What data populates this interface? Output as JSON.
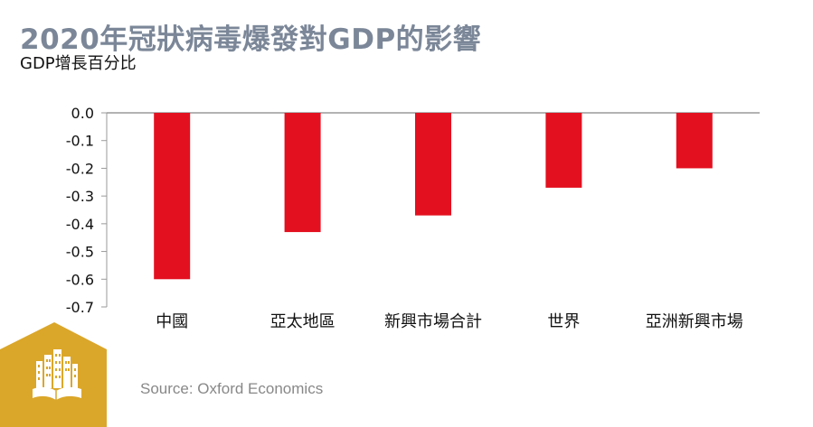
{
  "header": {
    "title": "2020年冠狀病毒爆發對GDP的影響",
    "subtitle": "GDP增長百分比"
  },
  "source_note": "Source: Oxford Economics",
  "colors": {
    "bar": "#e3101f",
    "title": "#7b8798",
    "logo_bg": "#dba72a",
    "logo_fg": "#ffffff"
  },
  "icons": {
    "logo": "city-book-icon"
  },
  "chart_data": {
    "type": "bar",
    "categories": [
      "中國",
      "亞太地區",
      "新興市場合計",
      "世界",
      "亞洲新興市場"
    ],
    "values": [
      -0.6,
      -0.43,
      -0.37,
      -0.27,
      -0.2
    ],
    "ylim": [
      -0.7,
      0.0
    ],
    "yticks": [
      "0.0",
      "-0.1",
      "-0.2",
      "-0.3",
      "-0.4",
      "-0.5",
      "-0.6",
      "-0.7"
    ],
    "grid": false,
    "legend": "none"
  }
}
